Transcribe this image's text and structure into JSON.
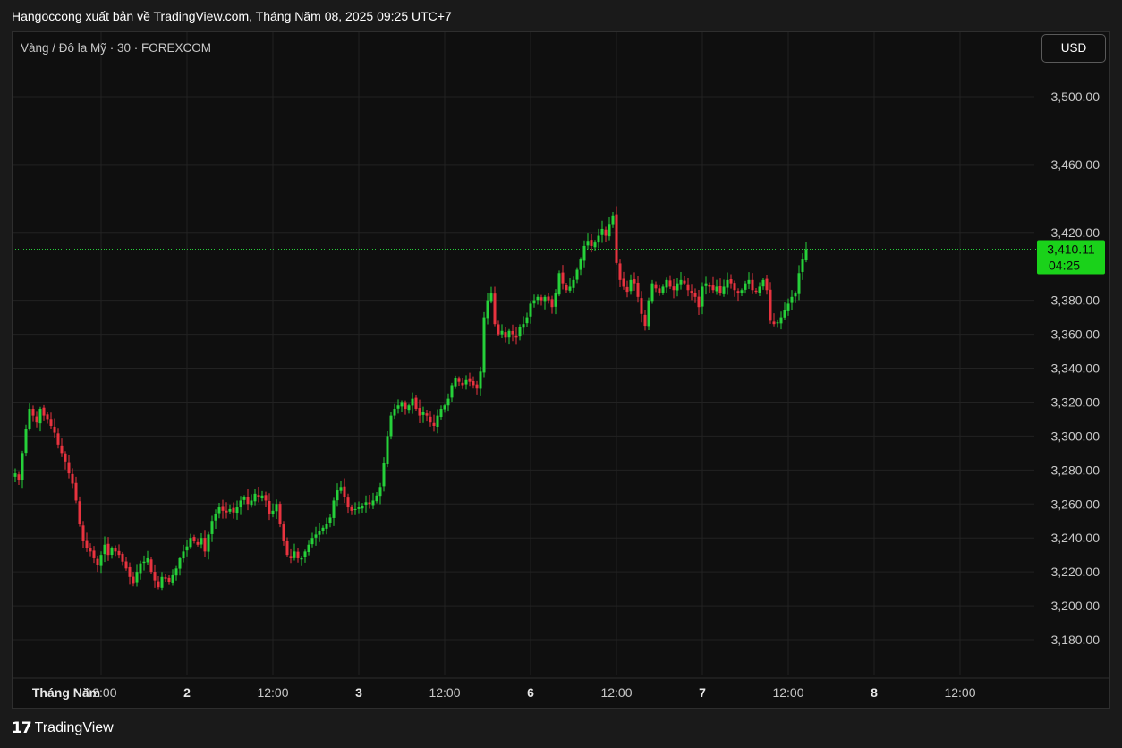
{
  "header": "Hangoccong xuất bản về TradingView.com, Tháng Năm 08, 2025 09:25 UTC+7",
  "symbol": "Vàng / Đô la Mỹ · 30 · FOREXCOM",
  "currency_button": "USD",
  "brand": "TradingView",
  "colors": {
    "up": "#26d13a",
    "down": "#e8333f",
    "background": "#0f0f0f",
    "grid": "#222222",
    "axis_text": "#c9c9c9",
    "last_price_bg": "#1ad21a"
  },
  "chart_data": {
    "type": "candlestick",
    "ylim": [
      3168,
      3530
    ],
    "y_ticks": [
      3180,
      3200,
      3220,
      3240,
      3260,
      3280,
      3300,
      3320,
      3340,
      3360,
      3380,
      3420,
      3460,
      3500
    ],
    "y_tick_labels": [
      "3,180.00",
      "3,200.00",
      "3,220.00",
      "3,240.00",
      "3,260.00",
      "3,280.00",
      "3,300.00",
      "3,320.00",
      "3,340.00",
      "3,360.00",
      "3,380.00",
      "3,420.00",
      "3,460.00",
      "3,500.00"
    ],
    "x_ticks": [
      {
        "label": "Tháng Năm",
        "index": 0,
        "bold": true
      },
      {
        "label": "12:00",
        "index": 24
      },
      {
        "label": "2",
        "index": 48,
        "bold": true
      },
      {
        "label": "12:00",
        "index": 72
      },
      {
        "label": "3",
        "index": 96,
        "bold": true
      },
      {
        "label": "12:00",
        "index": 120
      },
      {
        "label": "6",
        "index": 144,
        "bold": true
      },
      {
        "label": "12:00",
        "index": 168
      },
      {
        "label": "7",
        "index": 192,
        "bold": true
      },
      {
        "label": "12:00",
        "index": 216
      },
      {
        "label": "8",
        "index": 240,
        "bold": true
      },
      {
        "label": "12:00",
        "index": 264
      }
    ],
    "last_price": 3410.11,
    "last_price_label": "3,410.11",
    "countdown": "04:25",
    "closes": [
      3278,
      3274,
      3290,
      3304,
      3316,
      3312,
      3308,
      3316,
      3312,
      3310,
      3306,
      3302,
      3295,
      3290,
      3285,
      3278,
      3272,
      3262,
      3248,
      3238,
      3234,
      3232,
      3228,
      3224,
      3230,
      3236,
      3230,
      3234,
      3232,
      3230,
      3226,
      3222,
      3217,
      3213,
      3220,
      3225,
      3226,
      3228,
      3220,
      3215,
      3211,
      3217,
      3216,
      3214,
      3218,
      3222,
      3228,
      3232,
      3235,
      3240,
      3238,
      3236,
      3240,
      3232,
      3242,
      3250,
      3254,
      3258,
      3256,
      3255,
      3257,
      3255,
      3258,
      3262,
      3264,
      3260,
      3262,
      3266,
      3264,
      3265,
      3262,
      3254,
      3256,
      3260,
      3248,
      3238,
      3230,
      3228,
      3232,
      3228,
      3228,
      3232,
      3236,
      3240,
      3242,
      3244,
      3246,
      3248,
      3252,
      3262,
      3268,
      3270,
      3264,
      3258,
      3256,
      3257,
      3258,
      3259,
      3261,
      3260,
      3262,
      3265,
      3270,
      3284,
      3300,
      3312,
      3316,
      3318,
      3320,
      3316,
      3318,
      3322,
      3316,
      3312,
      3314,
      3312,
      3308,
      3306,
      3312,
      3316,
      3318,
      3322,
      3330,
      3334,
      3332,
      3330,
      3333,
      3332,
      3330,
      3328,
      3338,
      3370,
      3380,
      3384,
      3366,
      3360,
      3362,
      3358,
      3362,
      3360,
      3358,
      3364,
      3366,
      3370,
      3378,
      3380,
      3382,
      3380,
      3382,
      3380,
      3376,
      3384,
      3396,
      3390,
      3386,
      3388,
      3392,
      3398,
      3404,
      3412,
      3415,
      3412,
      3414,
      3418,
      3422,
      3418,
      3425,
      3430,
      3402,
      3392,
      3388,
      3385,
      3392,
      3390,
      3382,
      3372,
      3365,
      3380,
      3390,
      3387,
      3384,
      3388,
      3392,
      3388,
      3386,
      3390,
      3392,
      3390,
      3386,
      3384,
      3382,
      3376,
      3388,
      3390,
      3388,
      3386,
      3388,
      3384,
      3388,
      3392,
      3390,
      3386,
      3384,
      3386,
      3390,
      3392,
      3386,
      3385,
      3388,
      3392,
      3386,
      3368,
      3366,
      3367,
      3370,
      3374,
      3378,
      3382,
      3384,
      3396,
      3404,
      3410.11
    ]
  }
}
